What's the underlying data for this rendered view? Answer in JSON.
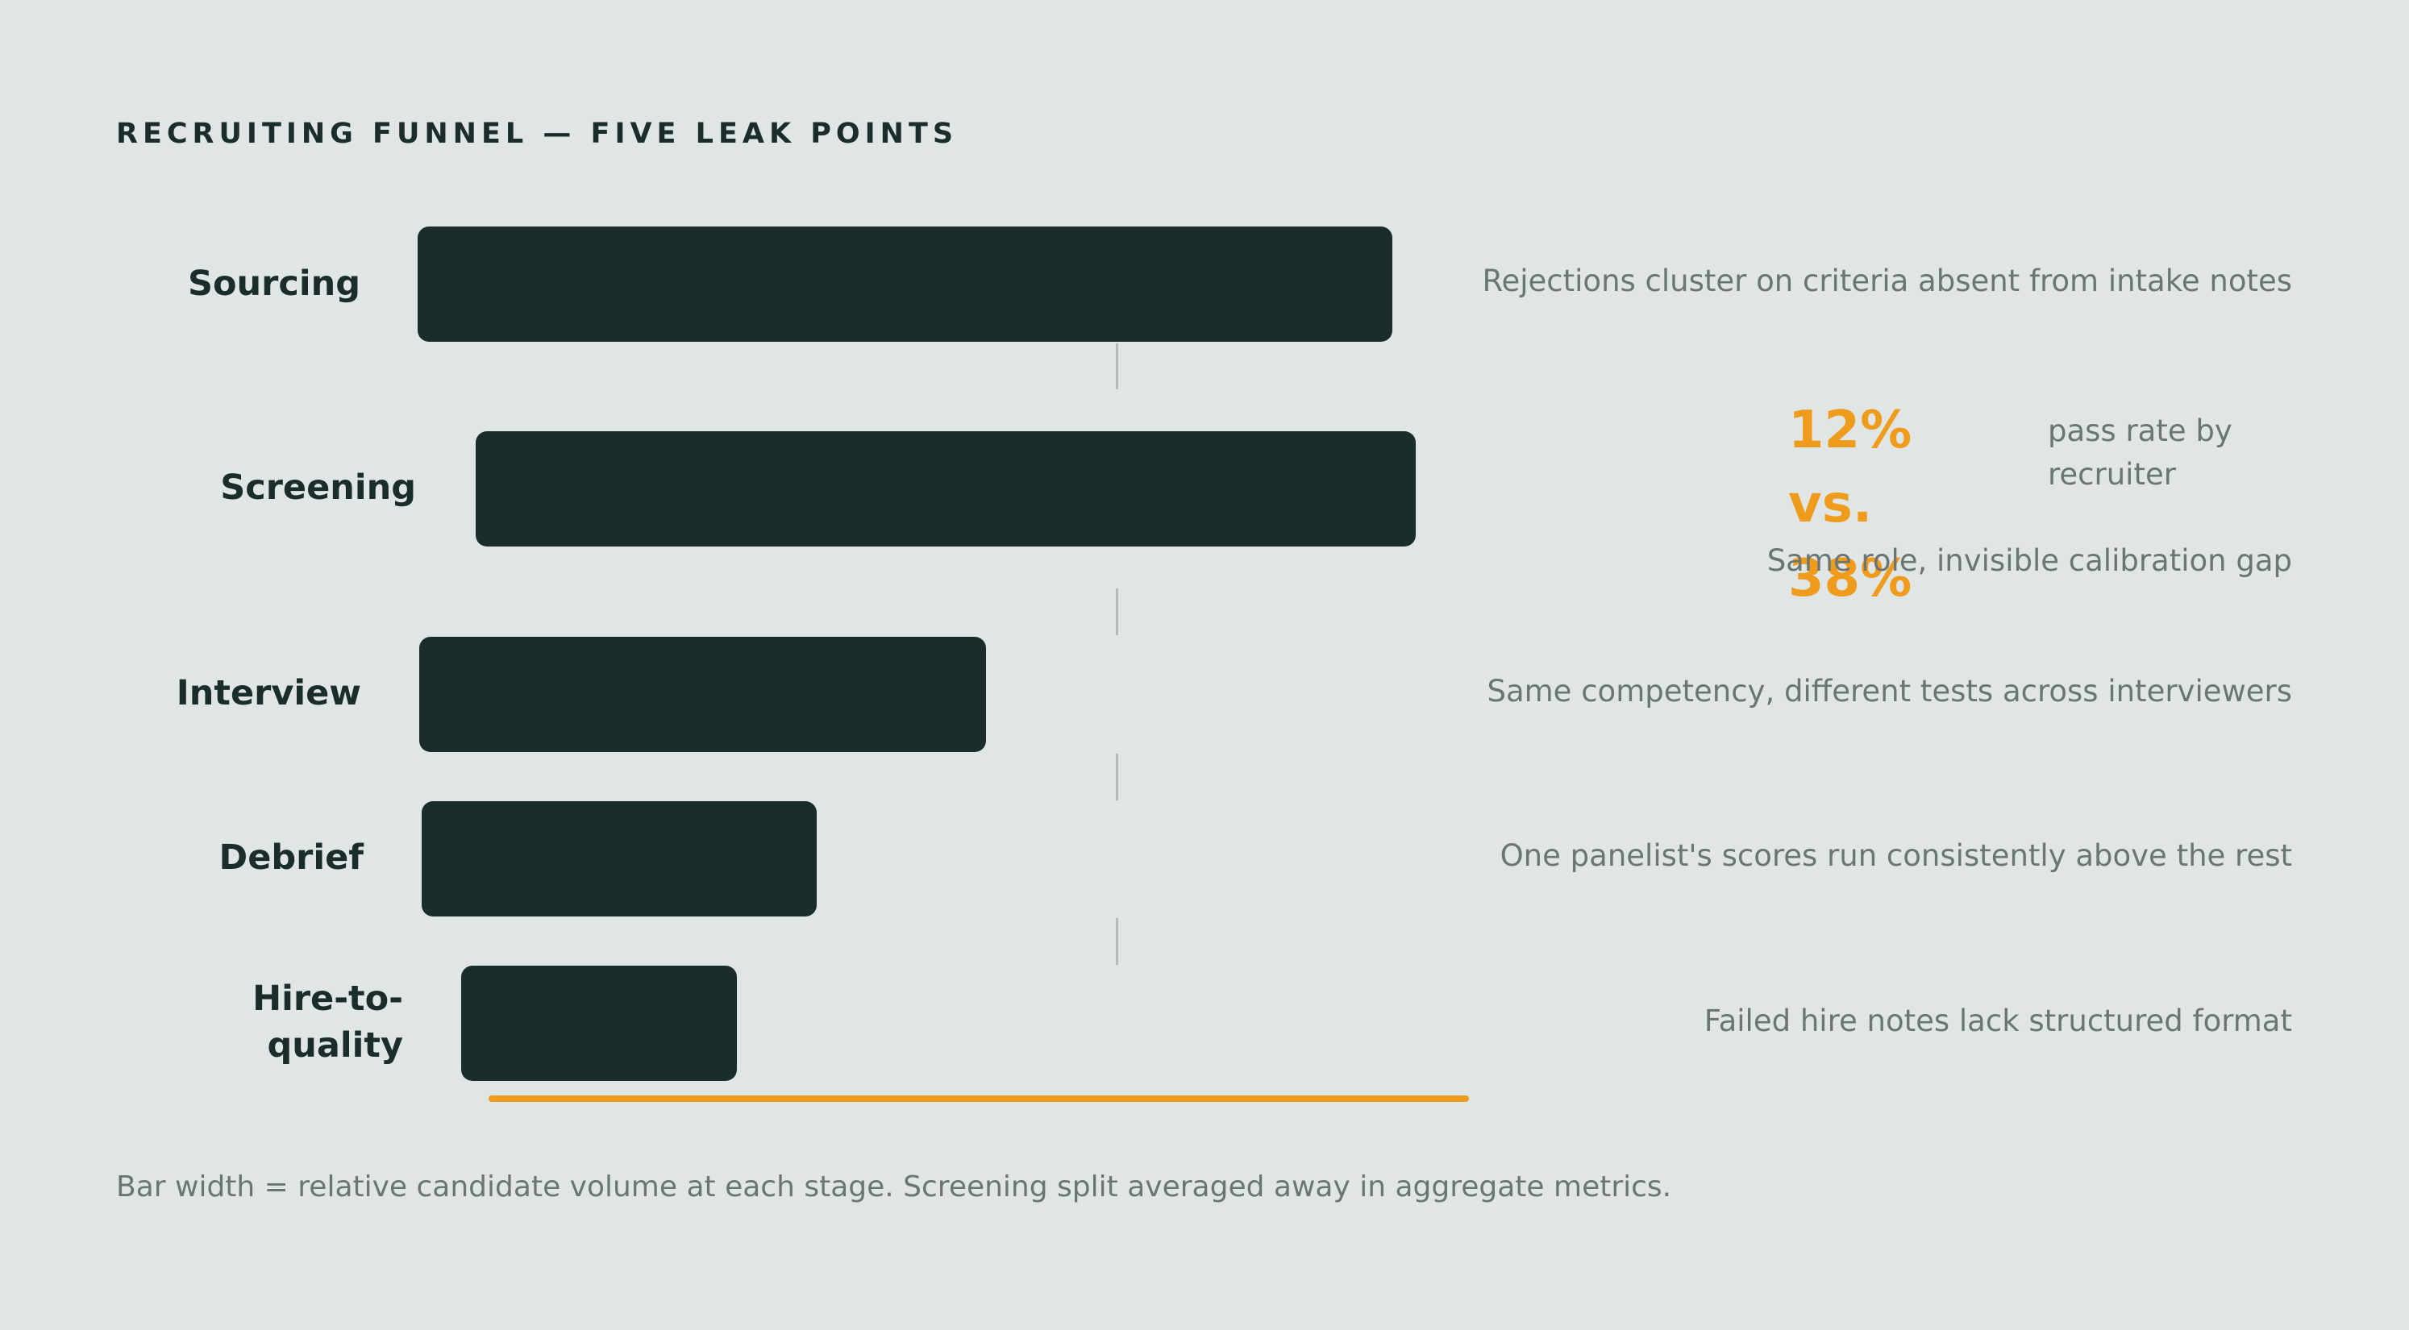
{
  "title": "RECRUITING FUNNEL — FIVE LEAK POINTS",
  "colors": {
    "background": "#e0e6e5",
    "bar": "#1b2d2b",
    "accent": "#ef9b1c",
    "muted_text": "#6b7574",
    "connector": "#b3bcbb"
  },
  "stages": [
    {
      "label": "Sourcing",
      "note": "Rejections cluster on criteria absent from intake notes"
    },
    {
      "label": "Screening",
      "note": ""
    },
    {
      "label": "Interview",
      "note": "Same competency, different tests across interviewers"
    },
    {
      "label": "Debrief",
      "note": "One panelist's scores run consistently above the rest"
    },
    {
      "label": "Hire-to-quality",
      "note": "Failed hire notes lack structured format"
    }
  ],
  "callout": {
    "stat": "12% vs. 38%",
    "description": "pass rate by recruiter",
    "subtext": "Same role, invisible calibration gap"
  },
  "footnote": "Bar width = relative candidate volume at each stage. Screening split averaged away in aggregate metrics."
}
